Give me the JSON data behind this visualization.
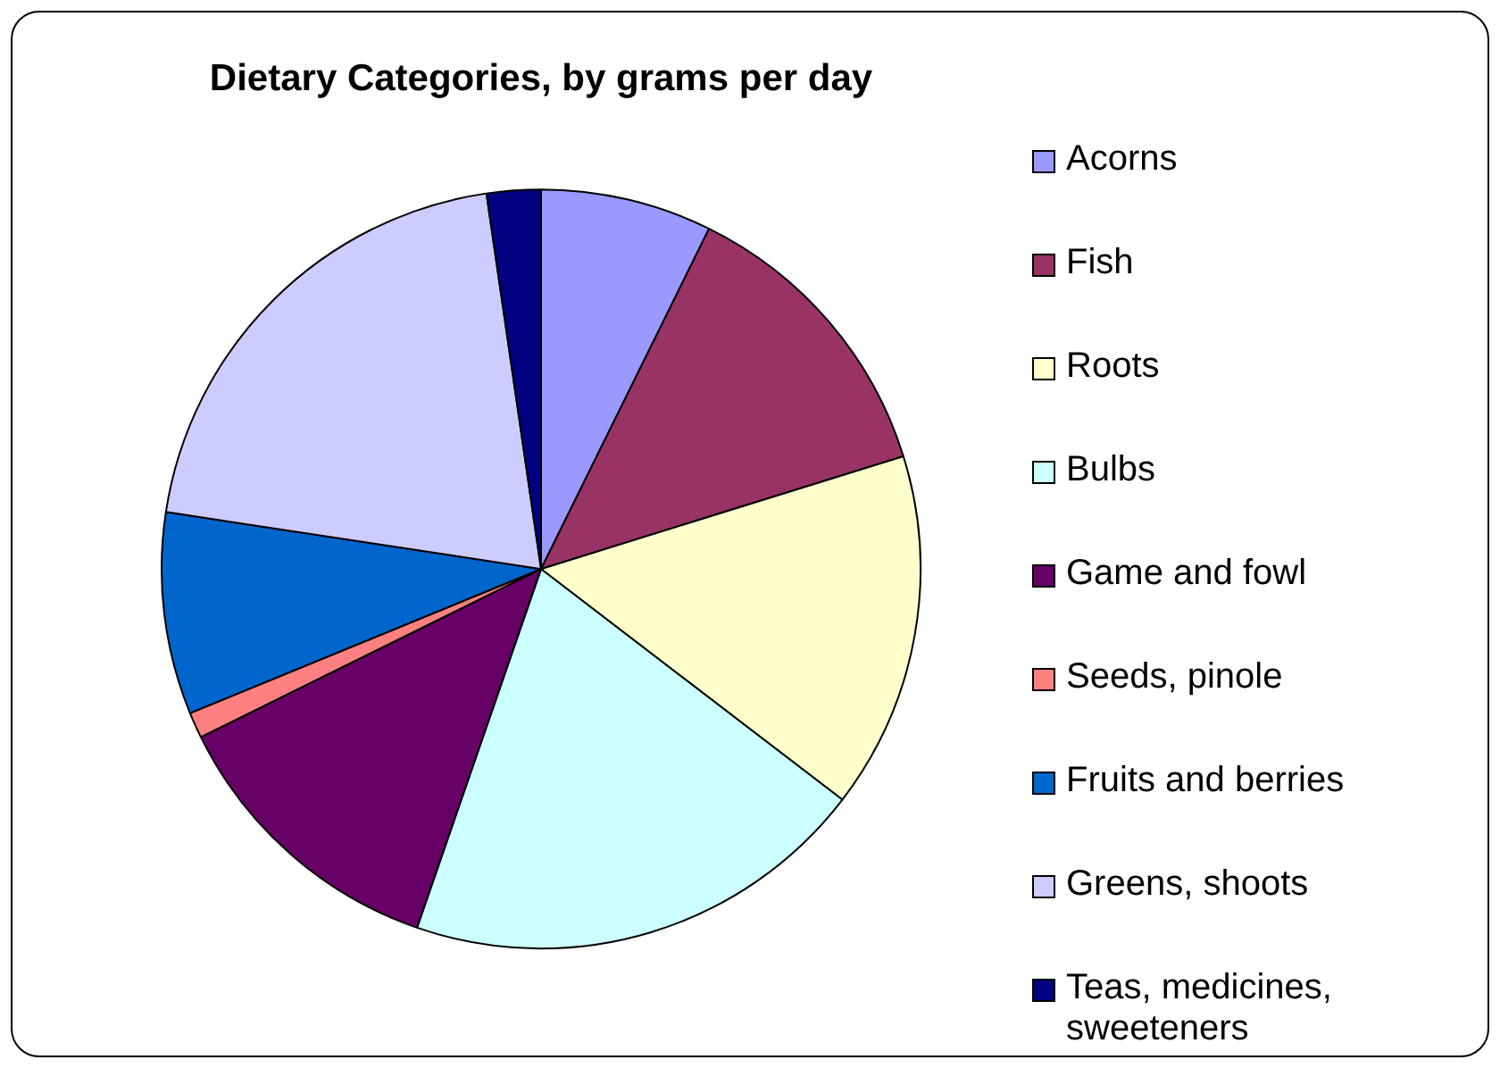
{
  "chart_data": {
    "type": "pie",
    "title": "Dietary Categories, by grams per day",
    "categories": [
      "Acorns",
      "Fish",
      "Roots",
      "Bulbs",
      "Game and fowl",
      "Seeds, pinole",
      "Fruits and berries",
      "Greens, shoots",
      "Teas, medicines, sweeteners"
    ],
    "values": [
      7.3,
      12.9,
      15.2,
      19.9,
      12.4,
      1.1,
      8.6,
      20.3,
      2.3
    ],
    "colors": [
      "#9999ff",
      "#993366",
      "#ffffcc",
      "#ccffff",
      "#660066",
      "#ff8080",
      "#0066cc",
      "#ccccff",
      "#000080"
    ],
    "legend": "right"
  }
}
